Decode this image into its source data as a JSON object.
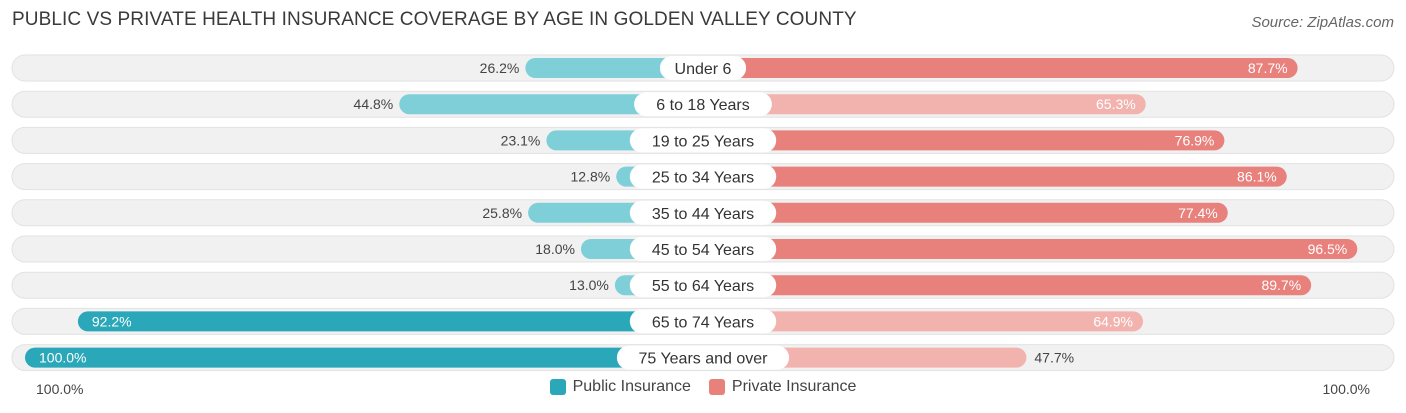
{
  "header": {
    "title": "PUBLIC VS PRIVATE HEALTH INSURANCE COVERAGE BY AGE IN GOLDEN VALLEY COUNTY",
    "source": "Source: ZipAtlas.com"
  },
  "axis": {
    "left_label": "100.0%",
    "right_label": "100.0%"
  },
  "legend": {
    "public_label": "Public Insurance",
    "private_label": "Private Insurance"
  },
  "colors": {
    "public_dark": "#2aa7b8",
    "public_light": "#7fcfd9",
    "private_dark": "#e8807c",
    "private_light": "#f2b2ae",
    "row_bg": "#f1f1f1"
  },
  "chart_data": {
    "type": "bar",
    "orientation": "horizontal-diverging",
    "title": "PUBLIC VS PRIVATE HEALTH INSURANCE COVERAGE BY AGE IN GOLDEN VALLEY COUNTY",
    "categories": [
      "Under 6",
      "6 to 18 Years",
      "19 to 25 Years",
      "25 to 34 Years",
      "35 to 44 Years",
      "45 to 54 Years",
      "55 to 64 Years",
      "65 to 74 Years",
      "75 Years and over"
    ],
    "series": [
      {
        "name": "Public Insurance",
        "values": [
          26.2,
          44.8,
          23.1,
          12.8,
          25.8,
          18.0,
          13.0,
          92.2,
          100.0
        ]
      },
      {
        "name": "Private Insurance",
        "values": [
          87.7,
          65.3,
          76.9,
          86.1,
          77.4,
          96.5,
          89.7,
          64.9,
          47.7
        ]
      }
    ],
    "xlim": [
      0,
      100
    ],
    "legend_position": "bottom-center"
  }
}
